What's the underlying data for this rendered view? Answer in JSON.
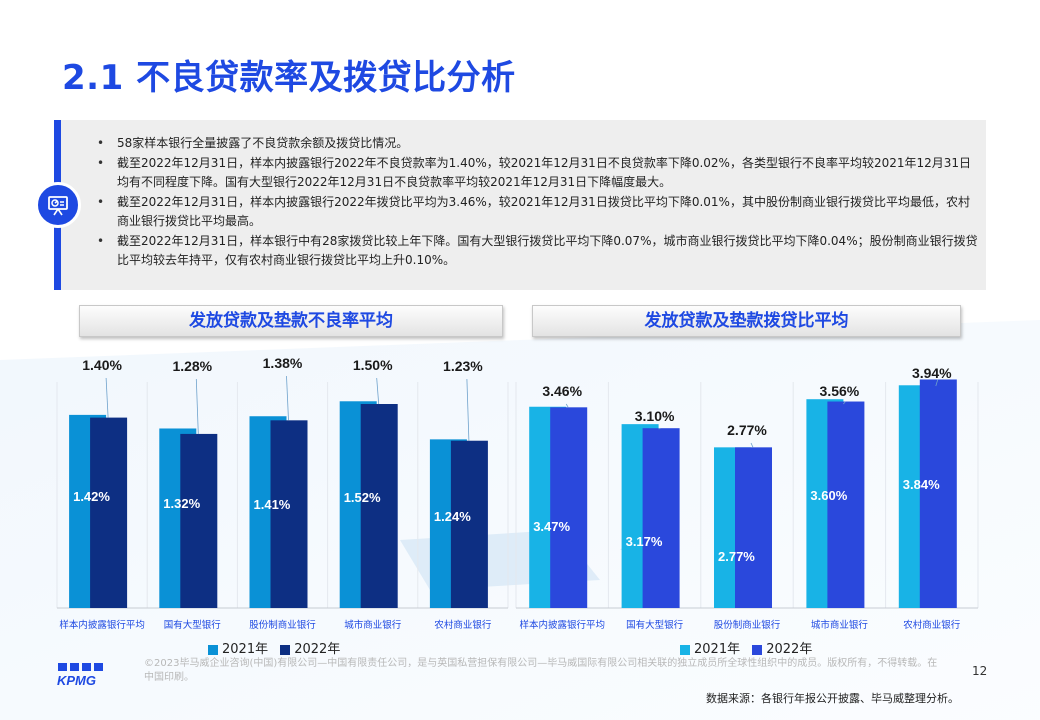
{
  "title": "2.1 不良贷款率及拨贷比分析",
  "summary": {
    "icon": "presentation-board-icon",
    "bullets": [
      "58家样本银行全量披露了不良贷款余额及拨贷比情况。",
      "截至2022年12月31日，样本内披露银行2022年不良贷款率为1.40%，较2021年12月31日不良贷款率下降0.02%，各类型银行不良率平均较2021年12月31日均有不同程度下降。国有大型银行2022年12月31日不良贷款率平均较2021年12月31日下降幅度最大。",
      "截至2022年12月31日，样本内披露银行2022年拨贷比平均为3.46%，较2021年12月31日拨贷比平均下降0.01%，其中股份制商业银行拨贷比平均最低，农村商业银行拨贷比平均最高。",
      "截至2022年12月31日，样本银行中有28家拨贷比较上年下降。国有大型银行拨贷比平均下降0.07%，城市商业银行拨贷比平均下降0.04%；股份制商业银行拨贷比平均较去年持平，仅有农村商业银行拨贷比平均上升0.10%。"
    ]
  },
  "colors": {
    "brand": "#1e49e2",
    "left_2021": "#0a91d6",
    "left_2022": "#0d2f83",
    "right_2021": "#18b3e6",
    "right_2022": "#2a48dc"
  },
  "chart_data": [
    {
      "type": "bar",
      "title": "发放贷款及垫款不良率平均",
      "categories": [
        "样本内披露银行平均",
        "国有大型银行",
        "股份制商业银行",
        "城市商业银行",
        "农村商业银行"
      ],
      "series": [
        {
          "name": "2021年",
          "values": [
            1.42,
            1.32,
            1.41,
            1.52,
            1.24
          ],
          "labels": [
            "1.42%",
            "1.32%",
            "1.41%",
            "1.52%",
            "1.24%"
          ]
        },
        {
          "name": "2022年",
          "values": [
            1.4,
            1.28,
            1.38,
            1.5,
            1.23
          ],
          "labels": [
            "1.40%",
            "1.28%",
            "1.38%",
            "1.50%",
            "1.23%"
          ]
        }
      ],
      "unit": "%",
      "legend": "bottom-left"
    },
    {
      "type": "bar",
      "title": "发放贷款及垫款拨贷比平均",
      "categories": [
        "样本内披露银行平均",
        "国有大型银行",
        "股份制商业银行",
        "城市商业银行",
        "农村商业银行"
      ],
      "series": [
        {
          "name": "2021年",
          "values": [
            3.47,
            3.17,
            2.77,
            3.6,
            3.84
          ],
          "labels": [
            "3.47%",
            "3.17%",
            "2.77%",
            "3.60%",
            "3.84%"
          ]
        },
        {
          "name": "2022年",
          "values": [
            3.46,
            3.1,
            2.77,
            3.56,
            3.94
          ],
          "labels": [
            "3.46%",
            "3.10%",
            "2.77%",
            "3.56%",
            "3.94%"
          ]
        }
      ],
      "unit": "%",
      "legend": "bottom-left"
    }
  ],
  "footer": {
    "logo": "KPMG",
    "copyright": "©2023毕马威企业咨询(中国)有限公司—中国有限责任公司，是与英国私营担保有限公司—毕马威国际有限公司相关联的独立成员所全球性组织中的成员。版权所有，不得转载。在中国印刷。",
    "page_number": "12",
    "source": "数据来源：各银行年报公开披露、毕马威整理分析。"
  }
}
